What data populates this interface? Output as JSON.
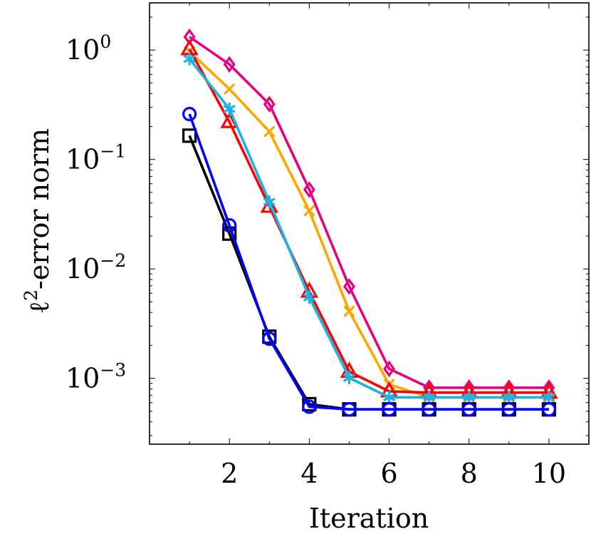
{
  "chart_data": {
    "type": "line",
    "xlabel": "Iteration",
    "ylabel": "ℓ²-error norm",
    "ylabel_parts": {
      "symbol": "ℓ",
      "sup": "2",
      "rest": "-error norm"
    },
    "y_scale": "log",
    "xlim": [
      0,
      11
    ],
    "ylim": [
      0.00025,
      2.7
    ],
    "x_ticks": [
      2,
      4,
      6,
      8,
      10
    ],
    "y_ticks": [
      {
        "value": 1,
        "base": "10",
        "exp": "0"
      },
      {
        "value": 0.1,
        "base": "10",
        "exp": "−1"
      },
      {
        "value": 0.01,
        "base": "10",
        "exp": "−2"
      },
      {
        "value": 0.001,
        "base": "10",
        "exp": "−3"
      }
    ],
    "grid": false,
    "legend": "none",
    "x": [
      1,
      2,
      3,
      4,
      5,
      6,
      7,
      8,
      9,
      10
    ],
    "series": [
      {
        "color": "#e6007e",
        "marker": "diamond",
        "values": [
          1.32,
          0.74,
          0.32,
          0.053,
          0.0069,
          0.00122,
          0.00082,
          0.00082,
          0.00082,
          0.00082
        ]
      },
      {
        "color": "#ffa500",
        "marker": "cross",
        "values": [
          0.97,
          0.44,
          0.18,
          0.034,
          0.0041,
          0.00088,
          0.00067,
          0.00067,
          0.00067,
          0.00067
        ]
      },
      {
        "color": "#ff0000",
        "marker": "triangle",
        "values": [
          1.02,
          0.22,
          0.037,
          0.0062,
          0.00115,
          0.00076,
          0.00074,
          0.00074,
          0.00074,
          0.00074
        ]
      },
      {
        "color": "#1ab3e6",
        "marker": "asterisk",
        "values": [
          0.83,
          0.29,
          0.041,
          0.0055,
          0.00101,
          0.00067,
          0.00067,
          0.00067,
          0.00067,
          0.00067
        ]
      },
      {
        "color": "#000000",
        "marker": "square",
        "values": [
          0.165,
          0.021,
          0.0024,
          0.00058,
          0.00052,
          0.00052,
          0.00052,
          0.00052,
          0.00052,
          0.00052
        ]
      },
      {
        "color": "#0000ff",
        "marker": "circle",
        "values": [
          0.26,
          0.025,
          0.0023,
          0.00055,
          0.00052,
          0.00052,
          0.00052,
          0.00052,
          0.00052,
          0.00052
        ]
      }
    ]
  }
}
